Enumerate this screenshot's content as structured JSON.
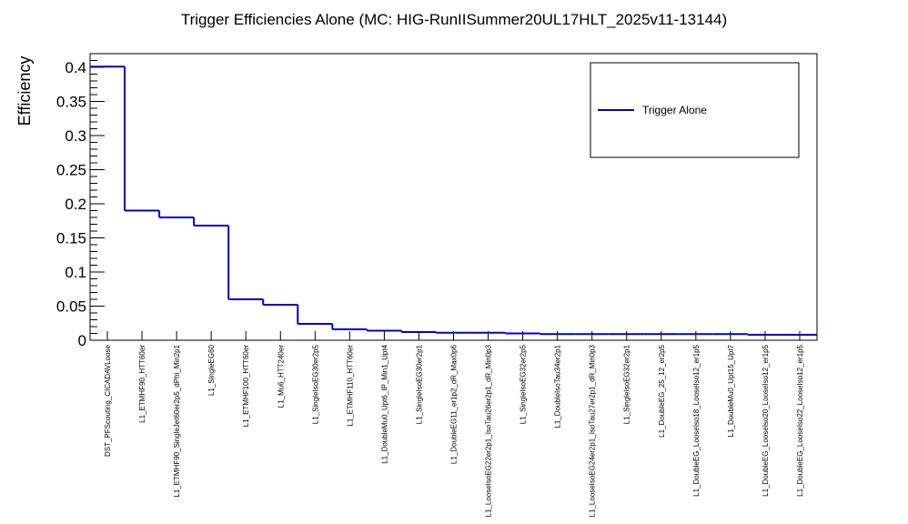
{
  "chart_data": {
    "type": "step",
    "title": "Trigger Efficiencies Alone (MC: HIG-RunIISummer20UL17HLT_2025v11-13144)",
    "xlabel": "",
    "ylabel": "Efficiency",
    "ylim": [
      0,
      0.42
    ],
    "yticks": [
      0,
      0.05,
      0.1,
      0.15,
      0.2,
      0.25,
      0.3,
      0.35,
      0.4
    ],
    "ytick_labels": [
      "0",
      "0.05",
      "0.1",
      "0.15",
      "0.2",
      "0.25",
      "0.3",
      "0.35",
      "0.4"
    ],
    "line_color": "#0000cc",
    "legend": {
      "position": "top-right",
      "entries": [
        "Trigger Alone"
      ]
    },
    "categories": [
      "DST_PFScouting_CICADAVLoose",
      "L1_ETMHF90_HTT60er",
      "L1_ETMHF90_SingleJet60er2p5_dPhi_Min2p1",
      "L1_SingleEG60",
      "L1_ETMHF100_HTT60er",
      "L1_Mu6_HTT240er",
      "L1_SingleIsoEG30er2p5",
      "L1_ETMHF110_HTT60er",
      "L1_DoubleMu0_Upt6_IP_Min1_Upt4",
      "L1_SingleIsoEG30er2p1",
      "L1_DoubleEG11_er1p2_dR_Max0p6",
      "L1_LooseIsoEG22er2p1_IsoTau26er2p1_dR_Min0p3",
      "L1_SingleIsoEG32er2p5",
      "L1_DoubleIsoTau34er2p1",
      "L1_LooseIsoEG24er2p1_IsoTau27er2p1_dR_Min0p3",
      "L1_SingleIsoEG32er2p1",
      "L1_DoubleEG_25_12_er2p5",
      "L1_DoubleEG_LooseIso18_LooseIso12_er1p5",
      "L1_DoubleMu0_Upt15_Upt7",
      "L1_DoubleEG_LooseIso20_LooseIso12_er1p5",
      "L1_DoubleEG_LooseIso22_LooseIso12_er1p5"
    ],
    "values": [
      0.401,
      0.19,
      0.18,
      0.168,
      0.06,
      0.052,
      0.024,
      0.016,
      0.014,
      0.012,
      0.011,
      0.011,
      0.01,
      0.009,
      0.009,
      0.009,
      0.009,
      0.009,
      0.009,
      0.008,
      0.008
    ]
  }
}
